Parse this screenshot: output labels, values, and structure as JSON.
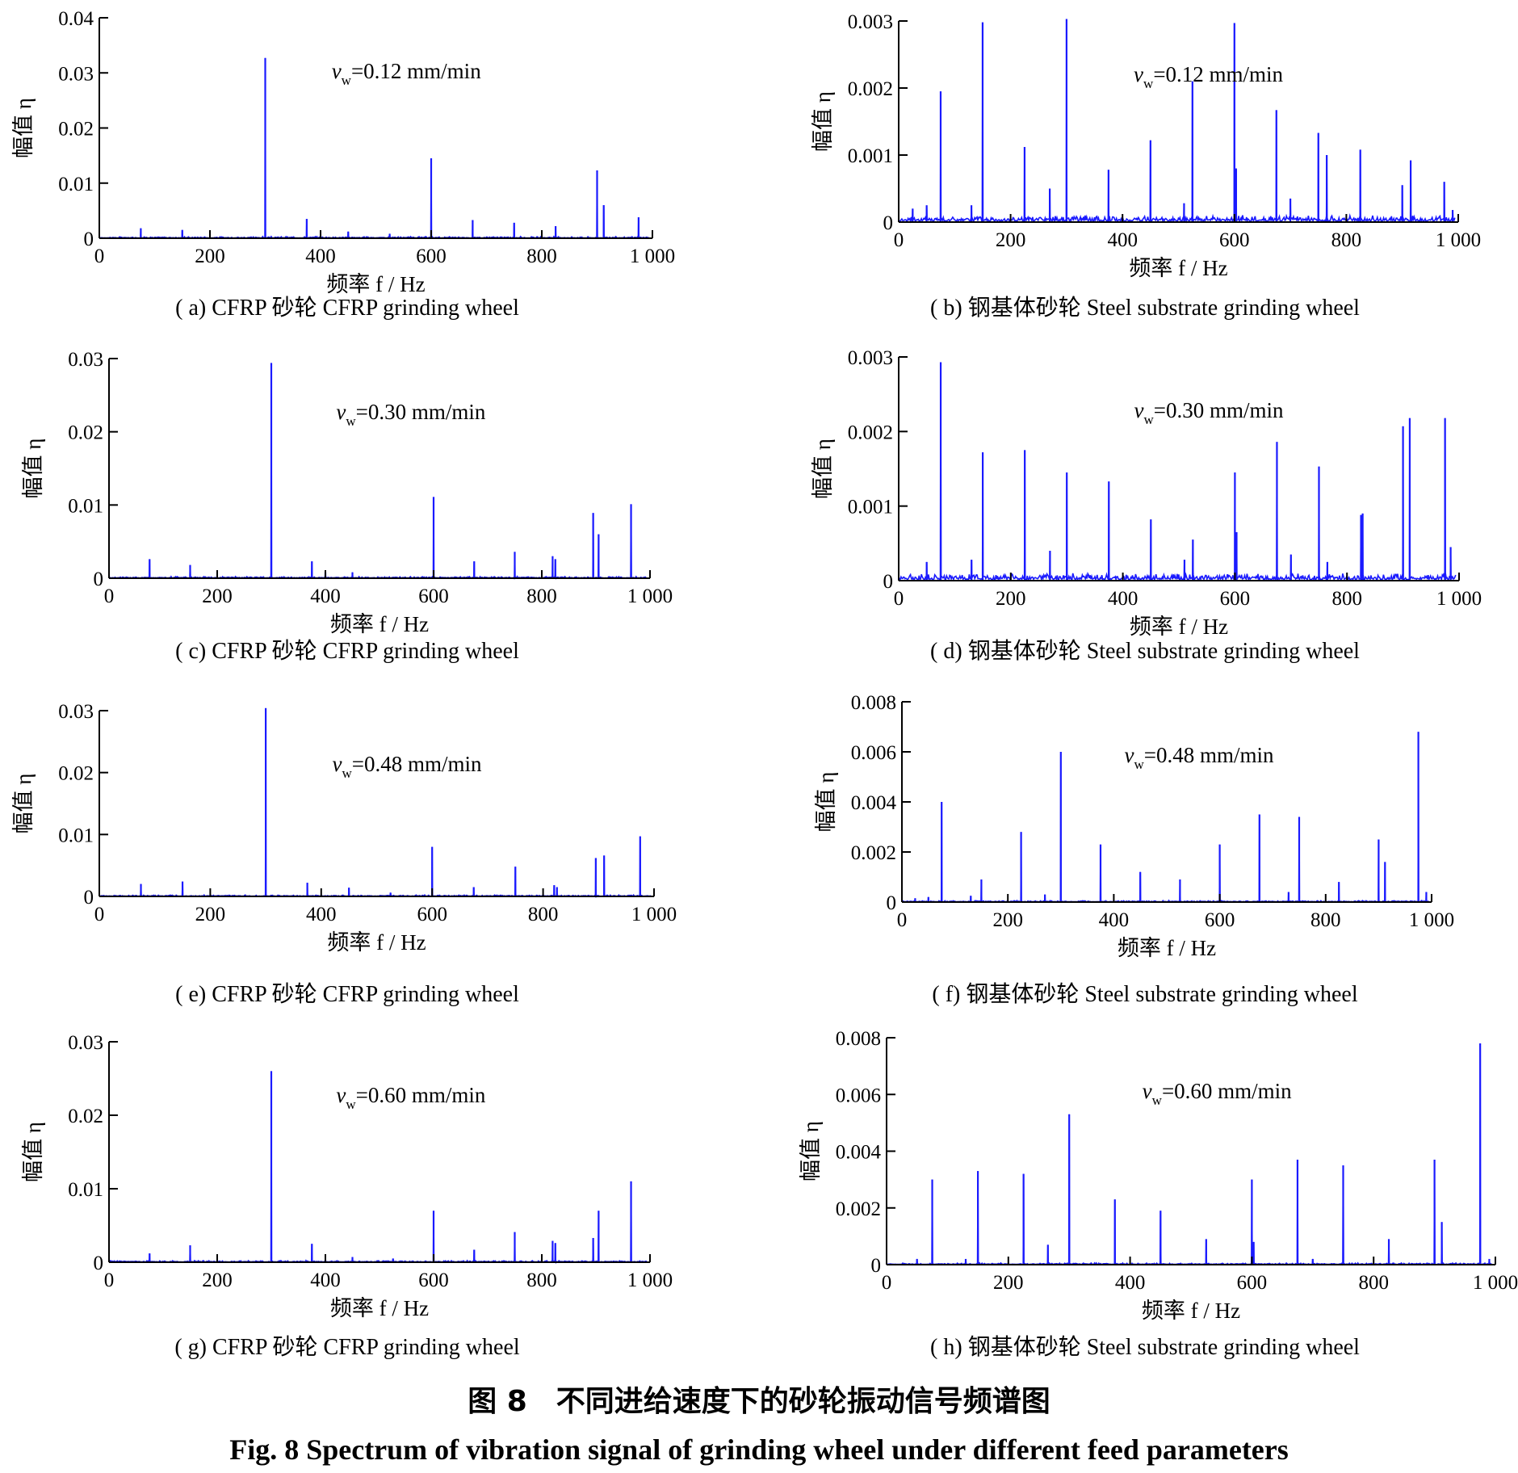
{
  "figure": {
    "caption_cn": "图 8　不同进给速度下的砂轮振动信号频谱图",
    "caption_en": "Fig. 8 Spectrum of vibration signal of grinding wheel under different feed parameters",
    "line_color": "#1a1aff"
  },
  "chart_data": [
    {
      "type": "line",
      "id": "a",
      "caption": "( a) CFRP 砂轮 CFRP grinding wheel",
      "annotation": "v_w=0.12 mm/min",
      "xlabel": "频率 f / Hz",
      "ylabel": "幅值 η",
      "xlim": [
        0,
        1000
      ],
      "ylim": [
        0,
        0.04
      ],
      "xticks": [
        0,
        200,
        400,
        600,
        800,
        1000
      ],
      "xtick_labels": [
        "0",
        "200",
        "400",
        "600",
        "800",
        "1 000"
      ],
      "yticks": [
        0,
        0.01,
        0.02,
        0.03,
        0.04
      ],
      "ytick_labels": [
        "0",
        "0.01",
        "0.02",
        "0.03",
        "0.04"
      ],
      "peaks": [
        [
          75,
          0.0018
        ],
        [
          150,
          0.0015
        ],
        [
          300,
          0.0327
        ],
        [
          375,
          0.0035
        ],
        [
          450,
          0.0012
        ],
        [
          525,
          0.0008
        ],
        [
          600,
          0.0145
        ],
        [
          675,
          0.0033
        ],
        [
          750,
          0.0028
        ],
        [
          825,
          0.0022
        ],
        [
          900,
          0.0123
        ],
        [
          912,
          0.006
        ],
        [
          975,
          0.0038
        ]
      ]
    },
    {
      "type": "line",
      "id": "b",
      "caption": "( b) 钢基体砂轮 Steel substrate grinding wheel",
      "annotation": "v_w=0.12 mm/min",
      "xlabel": "频率 f / Hz",
      "ylabel": "幅值 η",
      "xlim": [
        0,
        1000
      ],
      "ylim": [
        0,
        0.003
      ],
      "xticks": [
        0,
        200,
        400,
        600,
        800,
        1000
      ],
      "xtick_labels": [
        "0",
        "200",
        "400",
        "600",
        "800",
        "1 000"
      ],
      "yticks": [
        0,
        0.001,
        0.002,
        0.003
      ],
      "ytick_labels": [
        "0",
        "0.001",
        "0.002",
        "0.003"
      ],
      "peaks": [
        [
          25,
          0.0002
        ],
        [
          50,
          0.00025
        ],
        [
          75,
          0.00195
        ],
        [
          130,
          0.00025
        ],
        [
          150,
          0.00298
        ],
        [
          225,
          0.00112
        ],
        [
          270,
          0.0005
        ],
        [
          300,
          0.00303
        ],
        [
          375,
          0.00078
        ],
        [
          450,
          0.00122
        ],
        [
          510,
          0.00028
        ],
        [
          525,
          0.0021
        ],
        [
          600,
          0.00297
        ],
        [
          603,
          0.0008
        ],
        [
          675,
          0.00167
        ],
        [
          700,
          0.00035
        ],
        [
          750,
          0.00133
        ],
        [
          765,
          0.001
        ],
        [
          825,
          0.00108
        ],
        [
          900,
          0.00055
        ],
        [
          915,
          0.00092
        ],
        [
          975,
          0.0006
        ],
        [
          990,
          0.00018
        ]
      ]
    },
    {
      "type": "line",
      "id": "c",
      "caption": "( c) CFRP 砂轮 CFRP grinding wheel",
      "annotation": "v_w=0.30 mm/min",
      "xlabel": "频率 f / Hz",
      "ylabel": "幅值 η",
      "xlim": [
        0,
        1000
      ],
      "ylim": [
        0,
        0.03
      ],
      "xticks": [
        0,
        200,
        400,
        600,
        800,
        1000
      ],
      "xtick_labels": [
        "0",
        "200",
        "400",
        "600",
        "800",
        "1 000"
      ],
      "yticks": [
        0,
        0.01,
        0.02,
        0.03
      ],
      "ytick_labels": [
        "0",
        "0.01",
        "0.02",
        "0.03"
      ],
      "peaks": [
        [
          75,
          0.0026
        ],
        [
          150,
          0.0018
        ],
        [
          300,
          0.0294
        ],
        [
          375,
          0.0023
        ],
        [
          400,
          0.0008
        ],
        [
          450,
          0.0008
        ],
        [
          600,
          0.0111
        ],
        [
          675,
          0.0023
        ],
        [
          750,
          0.0036
        ],
        [
          820,
          0.003
        ],
        [
          825,
          0.0026
        ],
        [
          895,
          0.0089
        ],
        [
          905,
          0.006
        ],
        [
          965,
          0.0101
        ]
      ]
    },
    {
      "type": "line",
      "id": "d",
      "caption": "( d) 钢基体砂轮 Steel substrate grinding wheel",
      "annotation": "v_w=0.30 mm/min",
      "xlabel": "频率 f / Hz",
      "ylabel": "幅值 η",
      "xlim": [
        0,
        1000
      ],
      "ylim": [
        0,
        0.003
      ],
      "xticks": [
        0,
        200,
        400,
        600,
        800,
        1000
      ],
      "xtick_labels": [
        "0",
        "200",
        "400",
        "600",
        "800",
        "1 000"
      ],
      "yticks": [
        0,
        0.001,
        0.002,
        0.003
      ],
      "ytick_labels": [
        "0",
        "0.001",
        "0.002",
        "0.003"
      ],
      "peaks": [
        [
          50,
          0.00025
        ],
        [
          75,
          0.00293
        ],
        [
          130,
          0.00028
        ],
        [
          150,
          0.00172
        ],
        [
          225,
          0.00175
        ],
        [
          270,
          0.0004
        ],
        [
          300,
          0.00145
        ],
        [
          375,
          0.00133
        ],
        [
          450,
          0.00082
        ],
        [
          510,
          0.00028
        ],
        [
          525,
          0.00055
        ],
        [
          600,
          0.00145
        ],
        [
          603,
          0.00065
        ],
        [
          675,
          0.00186
        ],
        [
          700,
          0.00035
        ],
        [
          750,
          0.00153
        ],
        [
          765,
          0.00025
        ],
        [
          825,
          0.00088
        ],
        [
          828,
          0.0009
        ],
        [
          900,
          0.00207
        ],
        [
          912,
          0.00218
        ],
        [
          975,
          0.00218
        ],
        [
          985,
          0.00045
        ]
      ]
    },
    {
      "type": "line",
      "id": "e",
      "caption": "( e) CFRP 砂轮 CFRP grinding wheel",
      "annotation": "v_w=0.48 mm/min",
      "xlabel": "频率 f / Hz",
      "ylabel": "幅值 η",
      "xlim": [
        0,
        1000
      ],
      "ylim": [
        0,
        0.03
      ],
      "xticks": [
        0,
        200,
        400,
        600,
        800,
        1000
      ],
      "xtick_labels": [
        "0",
        "200",
        "400",
        "600",
        "800",
        "1 000"
      ],
      "yticks": [
        0,
        0.01,
        0.02,
        0.03
      ],
      "ytick_labels": [
        "0",
        "0.01",
        "0.02",
        "0.03"
      ],
      "peaks": [
        [
          75,
          0.002
        ],
        [
          150,
          0.0024
        ],
        [
          300,
          0.0304
        ],
        [
          375,
          0.0022
        ],
        [
          450,
          0.0014
        ],
        [
          525,
          0.0006
        ],
        [
          600,
          0.008
        ],
        [
          675,
          0.0015
        ],
        [
          750,
          0.0048
        ],
        [
          820,
          0.0018
        ],
        [
          825,
          0.0015
        ],
        [
          895,
          0.0062
        ],
        [
          910,
          0.0066
        ],
        [
          975,
          0.0097
        ]
      ]
    },
    {
      "type": "line",
      "id": "f",
      "caption": "( f) 钢基体砂轮 Steel substrate grinding wheel",
      "annotation": "v_w=0.48 mm/min",
      "xlabel": "频率 f / Hz",
      "ylabel": "幅值 η",
      "xlim": [
        0,
        1000
      ],
      "ylim": [
        0,
        0.008
      ],
      "xticks": [
        0,
        200,
        400,
        600,
        800,
        1000
      ],
      "xtick_labels": [
        "0",
        "200",
        "400",
        "600",
        "800",
        "1 000"
      ],
      "yticks": [
        0,
        0.002,
        0.004,
        0.006,
        0.008
      ],
      "ytick_labels": [
        "0",
        "0.002",
        "0.004",
        "0.006",
        "0.008"
      ],
      "peaks": [
        [
          25,
          0.00015
        ],
        [
          50,
          0.0002
        ],
        [
          75,
          0.004
        ],
        [
          130,
          0.00025
        ],
        [
          150,
          0.0009
        ],
        [
          225,
          0.0028
        ],
        [
          270,
          0.0003
        ],
        [
          300,
          0.006
        ],
        [
          375,
          0.0023
        ],
        [
          450,
          0.0012
        ],
        [
          525,
          0.0009
        ],
        [
          600,
          0.0023
        ],
        [
          675,
          0.0035
        ],
        [
          730,
          0.0004
        ],
        [
          750,
          0.0034
        ],
        [
          825,
          0.0008
        ],
        [
          900,
          0.0025
        ],
        [
          912,
          0.0016
        ],
        [
          975,
          0.0068
        ],
        [
          990,
          0.0004
        ]
      ]
    },
    {
      "type": "line",
      "id": "g",
      "caption": "( g) CFRP 砂轮 CFRP grinding wheel",
      "annotation": "v_w=0.60 mm/min",
      "xlabel": "频率 f / Hz",
      "ylabel": "幅值 η",
      "xlim": [
        0,
        1000
      ],
      "ylim": [
        0,
        0.03
      ],
      "xticks": [
        0,
        200,
        400,
        600,
        800,
        1000
      ],
      "xtick_labels": [
        "0",
        "200",
        "400",
        "600",
        "800",
        "1 000"
      ],
      "yticks": [
        0,
        0.01,
        0.02,
        0.03
      ],
      "ytick_labels": [
        "0",
        "0.01",
        "0.02",
        "0.03"
      ],
      "peaks": [
        [
          75,
          0.0012
        ],
        [
          150,
          0.0023
        ],
        [
          300,
          0.026
        ],
        [
          375,
          0.0025
        ],
        [
          450,
          0.0007
        ],
        [
          525,
          0.0005
        ],
        [
          600,
          0.007
        ],
        [
          675,
          0.0017
        ],
        [
          750,
          0.0041
        ],
        [
          820,
          0.0029
        ],
        [
          825,
          0.0026
        ],
        [
          895,
          0.0033
        ],
        [
          905,
          0.007
        ],
        [
          965,
          0.011
        ]
      ]
    },
    {
      "type": "line",
      "id": "h",
      "caption": "( h) 钢基体砂轮 Steel substrate grinding wheel",
      "annotation": "v_w=0.60 mm/min",
      "xlabel": "频率 f / Hz",
      "ylabel": "幅值 η",
      "xlim": [
        0,
        1000
      ],
      "ylim": [
        0,
        0.008
      ],
      "xticks": [
        0,
        200,
        400,
        600,
        800,
        1000
      ],
      "xtick_labels": [
        "0",
        "200",
        "400",
        "600",
        "800",
        "1 000"
      ],
      "yticks": [
        0,
        0.002,
        0.004,
        0.006,
        0.008
      ],
      "ytick_labels": [
        "0",
        "0.002",
        "0.004",
        "0.006",
        "0.008"
      ],
      "peaks": [
        [
          50,
          0.0002
        ],
        [
          75,
          0.003
        ],
        [
          130,
          0.0002
        ],
        [
          150,
          0.0033
        ],
        [
          225,
          0.0032
        ],
        [
          265,
          0.0007
        ],
        [
          300,
          0.0053
        ],
        [
          375,
          0.0023
        ],
        [
          450,
          0.0019
        ],
        [
          525,
          0.0009
        ],
        [
          600,
          0.003
        ],
        [
          603,
          0.0008
        ],
        [
          675,
          0.0037
        ],
        [
          700,
          0.0002
        ],
        [
          750,
          0.0035
        ],
        [
          825,
          0.0009
        ],
        [
          900,
          0.0037
        ],
        [
          912,
          0.0015
        ],
        [
          975,
          0.0078
        ],
        [
          990,
          0.0002
        ]
      ]
    }
  ]
}
